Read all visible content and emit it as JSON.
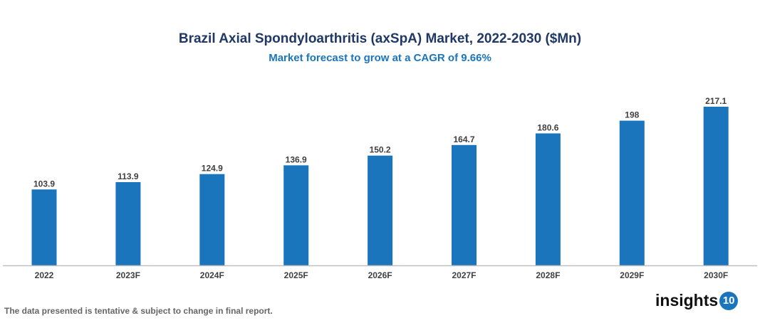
{
  "chart_data": {
    "type": "bar",
    "title": "Brazil Axial Spondyloarthritis (axSpA) Market, 2022-2030 ($Mn)",
    "subtitle": "Market forecast to grow at a CAGR of 9.66%",
    "categories": [
      "2022",
      "2023F",
      "2024F",
      "2025F",
      "2026F",
      "2027F",
      "2028F",
      "2029F",
      "2030F"
    ],
    "values": [
      103.9,
      113.9,
      124.9,
      136.9,
      150.2,
      164.7,
      180.6,
      198,
      217.1
    ],
    "xlabel": "",
    "ylabel": "",
    "ylim": [
      0,
      217.1
    ],
    "grid": false,
    "bar_color": "#1a75bc"
  },
  "footer": {
    "note": "The data presented is tentative & subject to change in final report."
  },
  "logo": {
    "text": "insights",
    "badge": "10"
  }
}
